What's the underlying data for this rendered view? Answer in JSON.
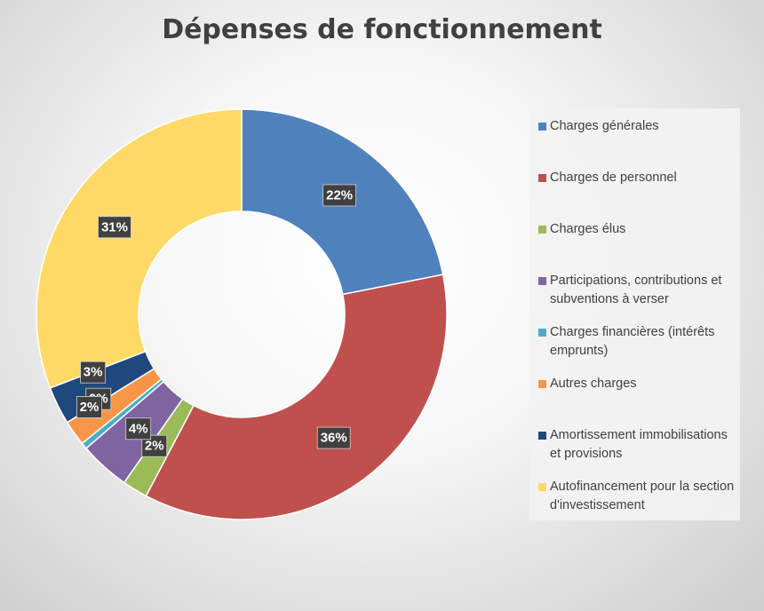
{
  "chart_data": {
    "type": "pie",
    "variant": "donut",
    "title": "Dépenses de fonctionnement",
    "legend_position": "right",
    "categories": [
      "Charges générales",
      "Charges de personnel",
      "Charges élus",
      "Participations, contributions et subventions à verser",
      "Charges financières (intérêts emprunts)",
      "Autres charges",
      "Amortissement immobilisations et provisions",
      "Autofinancement pour la section d'investissement"
    ],
    "values": [
      22,
      36,
      2,
      4,
      0.5,
      2,
      3,
      31
    ],
    "data_labels": [
      "22%",
      "36%",
      "2%",
      "4%",
      "0%",
      "2%",
      "3%",
      "31%"
    ],
    "colors": [
      "#4F81BD",
      "#C0504D",
      "#9BBB59",
      "#8064A2",
      "#4BACC6",
      "#F79646",
      "#1F497D",
      "#FFD966"
    ]
  }
}
